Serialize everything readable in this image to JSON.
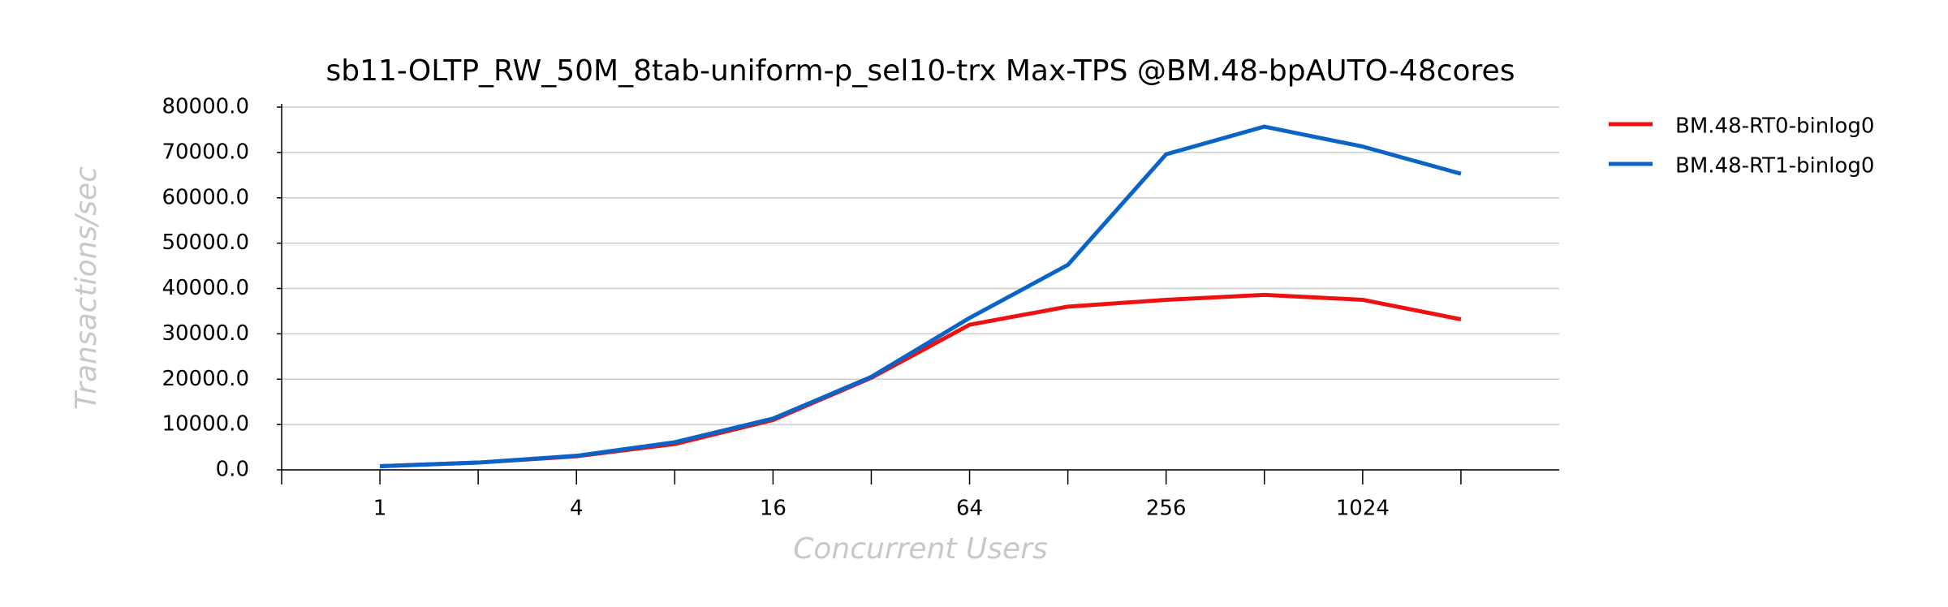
{
  "chart_data": {
    "type": "line",
    "title": "sb11-OLTP_RW_50M_8tab-uniform-p_sel10-trx Max-TPS @BM.48-bpAUTO-48cores",
    "x_label": "Concurrent Users",
    "y_label": "Transactions/sec",
    "x": [
      1,
      2,
      4,
      8,
      16,
      32,
      64,
      128,
      256,
      512,
      1024,
      2048
    ],
    "x_scale": "log2",
    "xlim": [
      0.5,
      4096
    ],
    "xticks": [
      1,
      4,
      16,
      64,
      256,
      1024
    ],
    "xminorticks": [
      0.5,
      2,
      8,
      32,
      128,
      512,
      2048
    ],
    "ylim": [
      0,
      80000
    ],
    "yticks": [
      {
        "value": 0,
        "label": "0.0"
      },
      {
        "value": 10000,
        "label": "10000.0"
      },
      {
        "value": 20000,
        "label": "20000.0"
      },
      {
        "value": 30000,
        "label": "30000.0"
      },
      {
        "value": 40000,
        "label": "40000.0"
      },
      {
        "value": 50000,
        "label": "50000.0"
      },
      {
        "value": 60000,
        "label": "60000.0"
      },
      {
        "value": 70000,
        "label": "70000.0"
      },
      {
        "value": 80000,
        "label": "80000.0"
      }
    ],
    "grid": true,
    "legend": "right",
    "series": [
      {
        "name": "BM.48-RT0-binlog0",
        "color": "#ee1111",
        "values": [
          800,
          1600,
          3000,
          5700,
          11000,
          20300,
          32000,
          36000,
          37500,
          38600,
          37500,
          33200
        ]
      },
      {
        "name": "BM.48-RT1-binlog0",
        "color": "#0a64c8",
        "values": [
          800,
          1600,
          3100,
          6100,
          11300,
          20500,
          33500,
          45200,
          69600,
          75700,
          71300,
          65300
        ]
      }
    ]
  }
}
